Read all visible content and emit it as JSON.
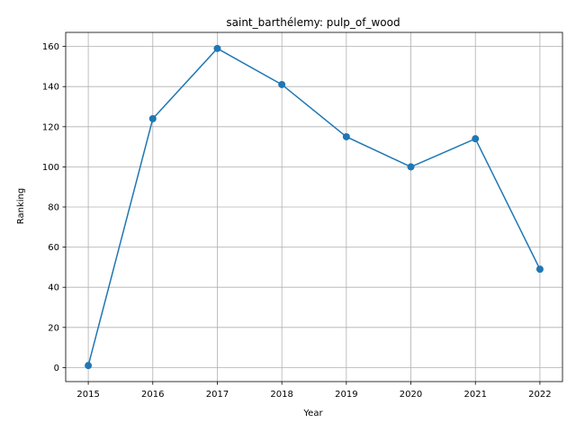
{
  "chart_data": {
    "type": "line",
    "title": "saint_barthélemy: pulp_of_wood",
    "xlabel": "Year",
    "ylabel": "Ranking",
    "x": [
      2015,
      2016,
      2017,
      2018,
      2019,
      2020,
      2021,
      2022
    ],
    "series": [
      {
        "values": [
          1,
          124,
          159,
          141,
          115,
          100,
          114,
          49
        ]
      }
    ],
    "xlim": [
      2014.65,
      2022.35
    ],
    "ylim": [
      -7,
      167
    ],
    "xticks": [
      "2015",
      "2016",
      "2017",
      "2018",
      "2019",
      "2020",
      "2021",
      "2022"
    ],
    "yticks": [
      "0",
      "20",
      "40",
      "60",
      "80",
      "100",
      "120",
      "140",
      "160"
    ],
    "grid": true,
    "line_color": "#1f77b4"
  }
}
